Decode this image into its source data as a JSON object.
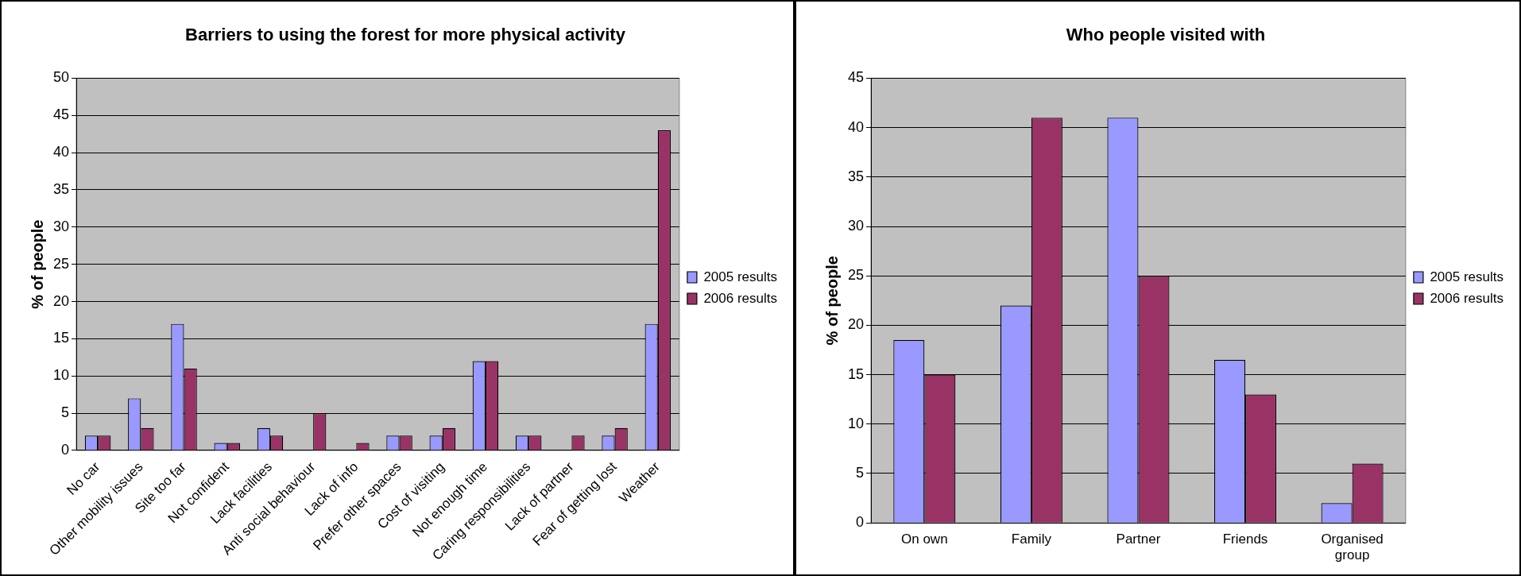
{
  "chart_data": [
    {
      "type": "bar",
      "title": "Barriers to using the forest for more physical activity",
      "ylabel": "% of people",
      "categories": [
        "No car",
        "Other mobility issues",
        "Site too far",
        "Not confident",
        "Lack facilities",
        "Anti social behaviour",
        "Lack of info",
        "Prefer other spaces",
        "Cost of visiting",
        "Not enough time",
        "Caring responsibilities",
        "Lack of partner",
        "Fear of getting lost",
        "Weather"
      ],
      "series": [
        {
          "name": "2005 results",
          "color": "#9999ff",
          "values": [
            2,
            7,
            17,
            1,
            3,
            null,
            null,
            2,
            2,
            12,
            2,
            null,
            2,
            17
          ]
        },
        {
          "name": "2006 results",
          "color": "#993366",
          "values": [
            2,
            3,
            11,
            1,
            2,
            5,
            1,
            2,
            3,
            12,
            2,
            2,
            3,
            43
          ]
        }
      ],
      "ylim": [
        0,
        50
      ],
      "yticks": [
        0,
        5,
        10,
        15,
        20,
        25,
        30,
        35,
        40,
        45,
        50
      ],
      "grid": "y",
      "legend": "right"
    },
    {
      "type": "bar",
      "title": "Who people visited with",
      "ylabel": "% of people",
      "categories": [
        "On own",
        "Family",
        "Partner",
        "Friends",
        "Organised group"
      ],
      "series": [
        {
          "name": "2005 results",
          "color": "#9999ff",
          "values": [
            18.5,
            22,
            41,
            16.5,
            2
          ]
        },
        {
          "name": "2006 results",
          "color": "#993366",
          "values": [
            15,
            41,
            25,
            13,
            6
          ]
        }
      ],
      "ylim": [
        0,
        45
      ],
      "yticks": [
        0,
        5,
        10,
        15,
        20,
        25,
        30,
        35,
        40,
        45
      ],
      "grid": "y",
      "legend": "right"
    }
  ]
}
